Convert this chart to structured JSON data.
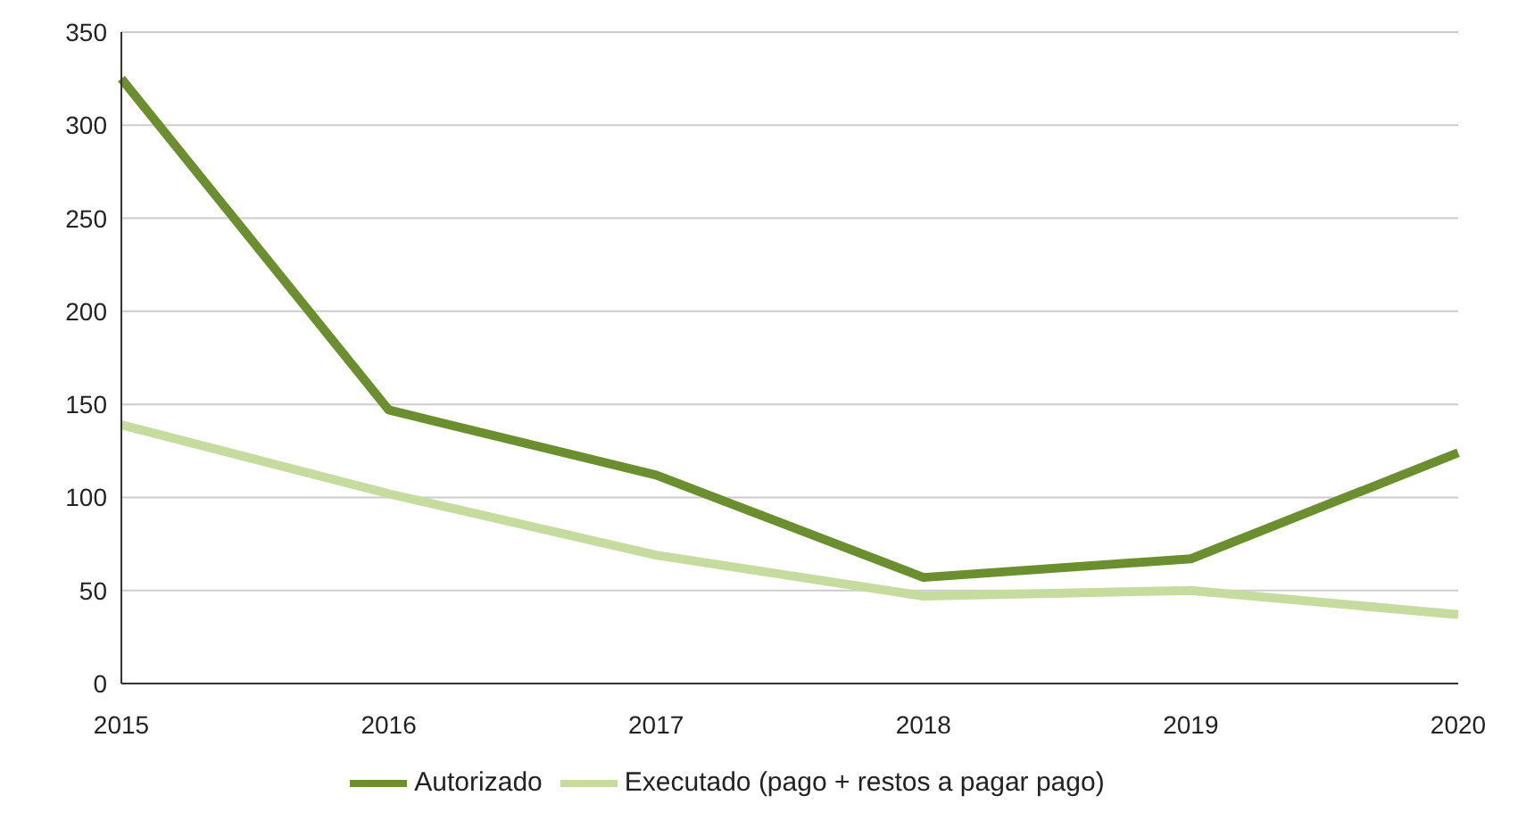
{
  "chart_data": {
    "type": "line",
    "categories": [
      "2015",
      "2016",
      "2017",
      "2018",
      "2019",
      "2020"
    ],
    "series": [
      {
        "name": "Autorizado",
        "color": "#6b8e2f",
        "values": [
          325,
          147,
          112,
          57,
          67,
          124
        ]
      },
      {
        "name": "Executado (pago + restos a pagar pago)",
        "color": "#c5dc9e",
        "values": [
          139,
          102,
          69,
          47,
          50,
          37
        ]
      }
    ],
    "ylim": [
      0,
      350
    ],
    "yticks": [
      0,
      50,
      100,
      150,
      200,
      250,
      300,
      350
    ],
    "grid": "y",
    "legend": "bottom",
    "marker": "none",
    "line_style": "solid"
  }
}
